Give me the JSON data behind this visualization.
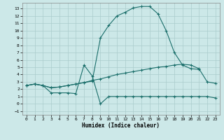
{
  "xlabel": "Humidex (Indice chaleur)",
  "bg_color": "#cce8e8",
  "grid_color": "#aacccc",
  "line_color": "#1a6e6a",
  "xlim": [
    -0.5,
    23.5
  ],
  "ylim": [
    -1.5,
    13.8
  ],
  "xticks": [
    0,
    1,
    2,
    3,
    4,
    5,
    6,
    7,
    8,
    9,
    10,
    11,
    12,
    13,
    14,
    15,
    16,
    17,
    18,
    19,
    20,
    21,
    22,
    23
  ],
  "yticks": [
    -1,
    0,
    1,
    2,
    3,
    4,
    5,
    6,
    7,
    8,
    9,
    10,
    11,
    12,
    13
  ],
  "line_top_x": [
    0,
    1,
    2,
    3,
    4,
    5,
    6,
    7,
    8,
    9,
    10,
    11,
    12,
    13,
    14,
    15,
    16,
    17,
    18,
    19,
    20,
    21
  ],
  "line_top_y": [
    2.5,
    2.7,
    2.5,
    2.2,
    2.3,
    2.5,
    2.7,
    2.9,
    3.1,
    9.0,
    10.7,
    12.0,
    12.5,
    13.1,
    13.3,
    13.3,
    12.3,
    10.0,
    7.0,
    5.3,
    4.8,
    4.7
  ],
  "line_mid_x": [
    0,
    1,
    2,
    3,
    4,
    5,
    6,
    7,
    8,
    9,
    10,
    11,
    12,
    13,
    14,
    15,
    16,
    17,
    18,
    19,
    20,
    21,
    22,
    23
  ],
  "line_mid_y": [
    2.5,
    2.7,
    2.5,
    2.2,
    2.3,
    2.5,
    2.7,
    2.9,
    3.2,
    3.4,
    3.7,
    4.0,
    4.2,
    4.4,
    4.6,
    4.8,
    5.0,
    5.1,
    5.3,
    5.4,
    5.3,
    4.8,
    3.0,
    2.8
  ],
  "line_bot_x": [
    0,
    1,
    2,
    3,
    4,
    5,
    6,
    7,
    8,
    9,
    10,
    11,
    12,
    13,
    14,
    15,
    16,
    17,
    18,
    19,
    20,
    21,
    22,
    23
  ],
  "line_bot_y": [
    2.5,
    2.7,
    2.5,
    1.5,
    1.5,
    1.5,
    1.4,
    5.3,
    3.8,
    0.0,
    1.0,
    1.0,
    1.0,
    1.0,
    1.0,
    1.0,
    1.0,
    1.0,
    1.0,
    1.0,
    1.0,
    1.0,
    1.0,
    0.8
  ]
}
